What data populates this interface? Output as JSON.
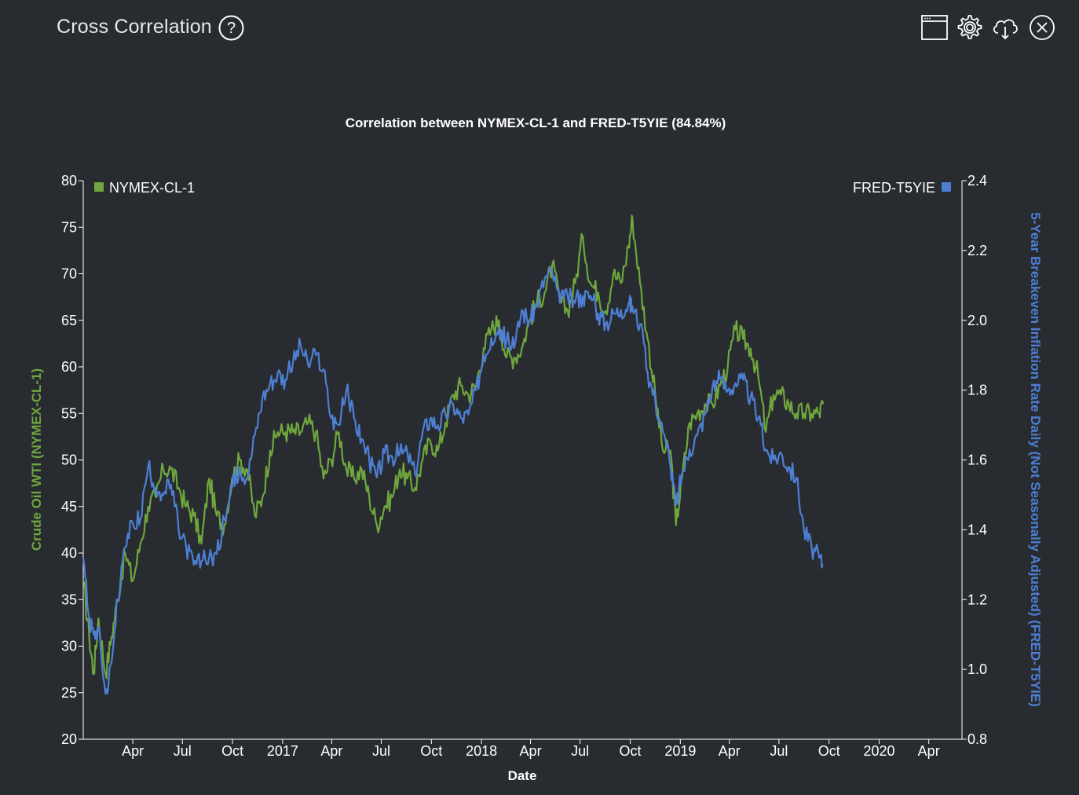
{
  "header": {
    "title": "Cross Correlation",
    "help_icon": "help-circle-icon",
    "toolbar": [
      {
        "name": "window-icon"
      },
      {
        "name": "gear-icon"
      },
      {
        "name": "cloud-download-icon"
      },
      {
        "name": "close-circle-icon"
      }
    ]
  },
  "colors": {
    "background": "#282c31",
    "series_green": "#6fa63d",
    "series_blue": "#4e7fd4",
    "axis": "#ffffff"
  },
  "chart_data": {
    "type": "line",
    "title": "Correlation between NYMEX-CL-1 and FRED-T5YIE (84.84%)",
    "xlabel": "Date",
    "ylabel_left": "Crude Oil WTI (NYMEX-CL-1)",
    "ylabel_right": "5-Year Breakeven Inflation Rate Daily (Not Seasonally Adjusted) (FRED-T5YIE)",
    "x_range": [
      "2016-01-01",
      "2020-06-01"
    ],
    "x_ticks": [
      {
        "date": "2016-04-01",
        "label": "Apr"
      },
      {
        "date": "2016-07-01",
        "label": "Jul"
      },
      {
        "date": "2016-10-01",
        "label": "Oct"
      },
      {
        "date": "2017-01-01",
        "label": "2017"
      },
      {
        "date": "2017-04-01",
        "label": "Apr"
      },
      {
        "date": "2017-07-01",
        "label": "Jul"
      },
      {
        "date": "2017-10-01",
        "label": "Oct"
      },
      {
        "date": "2018-01-01",
        "label": "2018"
      },
      {
        "date": "2018-04-01",
        "label": "Apr"
      },
      {
        "date": "2018-07-01",
        "label": "Jul"
      },
      {
        "date": "2018-10-01",
        "label": "Oct"
      },
      {
        "date": "2019-01-01",
        "label": "2019"
      },
      {
        "date": "2019-04-01",
        "label": "Apr"
      },
      {
        "date": "2019-07-01",
        "label": "Jul"
      },
      {
        "date": "2019-10-01",
        "label": "Oct"
      },
      {
        "date": "2020-01-01",
        "label": "2020"
      },
      {
        "date": "2020-04-01",
        "label": "Apr"
      }
    ],
    "y_left": {
      "min": 20,
      "max": 80,
      "ticks": [
        20,
        25,
        30,
        35,
        40,
        45,
        50,
        55,
        60,
        65,
        70,
        75,
        80
      ]
    },
    "y_right": {
      "min": 0.8,
      "max": 2.4,
      "ticks": [
        "0.8",
        "1.0",
        "1.2",
        "1.4",
        "1.6",
        "1.8",
        "2.0",
        "2.2",
        "2.4"
      ]
    },
    "legend": {
      "left": "top-left",
      "right": "top-right"
    },
    "series": [
      {
        "name": "NYMEX-CL-1",
        "axis": "left",
        "color": "#6fa63d",
        "points": [
          [
            "2016-01-01",
            37
          ],
          [
            "2016-01-12",
            31
          ],
          [
            "2016-01-20",
            27
          ],
          [
            "2016-01-29",
            33
          ],
          [
            "2016-02-11",
            27
          ],
          [
            "2016-02-22",
            31
          ],
          [
            "2016-03-04",
            35
          ],
          [
            "2016-03-18",
            40
          ],
          [
            "2016-04-01",
            37
          ],
          [
            "2016-04-15",
            41
          ],
          [
            "2016-04-29",
            45
          ],
          [
            "2016-05-13",
            46
          ],
          [
            "2016-05-27",
            49
          ],
          [
            "2016-06-10",
            49
          ],
          [
            "2016-06-24",
            47
          ],
          [
            "2016-07-08",
            45
          ],
          [
            "2016-07-22",
            44
          ],
          [
            "2016-08-05",
            41
          ],
          [
            "2016-08-19",
            48
          ],
          [
            "2016-09-02",
            44
          ],
          [
            "2016-09-16",
            43
          ],
          [
            "2016-09-30",
            48
          ],
          [
            "2016-10-14",
            50
          ],
          [
            "2016-10-28",
            49
          ],
          [
            "2016-11-11",
            44
          ],
          [
            "2016-11-25",
            46
          ],
          [
            "2016-12-09",
            51
          ],
          [
            "2016-12-23",
            53
          ],
          [
            "2017-01-06",
            53
          ],
          [
            "2017-01-20",
            53
          ],
          [
            "2017-02-03",
            53
          ],
          [
            "2017-02-17",
            54
          ],
          [
            "2017-03-03",
            53
          ],
          [
            "2017-03-17",
            48
          ],
          [
            "2017-03-31",
            50
          ],
          [
            "2017-04-14",
            53
          ],
          [
            "2017-04-28",
            49
          ],
          [
            "2017-05-12",
            48
          ],
          [
            "2017-05-26",
            49
          ],
          [
            "2017-06-09",
            46
          ],
          [
            "2017-06-23",
            43
          ],
          [
            "2017-07-07",
            45
          ],
          [
            "2017-07-21",
            46
          ],
          [
            "2017-08-04",
            49
          ],
          [
            "2017-08-18",
            48
          ],
          [
            "2017-09-01",
            47
          ],
          [
            "2017-09-15",
            50
          ],
          [
            "2017-09-29",
            52
          ],
          [
            "2017-10-13",
            51
          ],
          [
            "2017-10-27",
            54
          ],
          [
            "2017-11-10",
            57
          ],
          [
            "2017-11-24",
            58
          ],
          [
            "2017-12-08",
            57
          ],
          [
            "2017-12-22",
            58
          ],
          [
            "2018-01-05",
            62
          ],
          [
            "2018-01-19",
            64
          ],
          [
            "2018-02-02",
            65
          ],
          [
            "2018-02-16",
            61
          ],
          [
            "2018-03-02",
            61
          ],
          [
            "2018-03-16",
            62
          ],
          [
            "2018-03-30",
            65
          ],
          [
            "2018-04-13",
            67
          ],
          [
            "2018-04-27",
            68
          ],
          [
            "2018-05-11",
            71
          ],
          [
            "2018-05-25",
            67
          ],
          [
            "2018-06-08",
            66
          ],
          [
            "2018-06-22",
            69
          ],
          [
            "2018-07-06",
            74
          ],
          [
            "2018-07-20",
            69
          ],
          [
            "2018-08-03",
            68
          ],
          [
            "2018-08-17",
            66
          ],
          [
            "2018-08-31",
            70
          ],
          [
            "2018-09-14",
            69
          ],
          [
            "2018-09-28",
            73
          ],
          [
            "2018-10-05",
            76
          ],
          [
            "2018-10-19",
            69
          ],
          [
            "2018-11-02",
            63
          ],
          [
            "2018-11-16",
            57
          ],
          [
            "2018-11-30",
            51
          ],
          [
            "2018-12-14",
            51
          ],
          [
            "2018-12-24",
            43
          ],
          [
            "2019-01-04",
            48
          ],
          [
            "2019-01-18",
            54
          ],
          [
            "2019-02-01",
            55
          ],
          [
            "2019-02-15",
            56
          ],
          [
            "2019-03-01",
            56
          ],
          [
            "2019-03-15",
            58
          ],
          [
            "2019-03-29",
            60
          ],
          [
            "2019-04-12",
            64
          ],
          [
            "2019-04-26",
            63
          ],
          [
            "2019-05-10",
            62
          ],
          [
            "2019-05-24",
            59
          ],
          [
            "2019-06-07",
            53
          ],
          [
            "2019-06-21",
            57
          ],
          [
            "2019-07-05",
            57
          ],
          [
            "2019-07-19",
            56
          ],
          [
            "2019-08-02",
            55
          ],
          [
            "2019-08-16",
            55
          ],
          [
            "2019-08-30",
            55
          ],
          [
            "2019-09-13",
            55
          ],
          [
            "2019-09-20",
            56
          ]
        ]
      },
      {
        "name": "FRED-T5YIE",
        "axis": "right",
        "color": "#4e7fd4",
        "points": [
          [
            "2016-01-01",
            1.32
          ],
          [
            "2016-01-12",
            1.15
          ],
          [
            "2016-01-20",
            1.1
          ],
          [
            "2016-01-29",
            1.12
          ],
          [
            "2016-02-11",
            0.93
          ],
          [
            "2016-02-22",
            1.02
          ],
          [
            "2016-03-04",
            1.2
          ],
          [
            "2016-03-18",
            1.35
          ],
          [
            "2016-04-01",
            1.42
          ],
          [
            "2016-04-15",
            1.43
          ],
          [
            "2016-04-29",
            1.58
          ],
          [
            "2016-05-13",
            1.52
          ],
          [
            "2016-05-27",
            1.5
          ],
          [
            "2016-06-10",
            1.53
          ],
          [
            "2016-06-24",
            1.4
          ],
          [
            "2016-07-08",
            1.35
          ],
          [
            "2016-07-22",
            1.3
          ],
          [
            "2016-08-05",
            1.31
          ],
          [
            "2016-08-19",
            1.32
          ],
          [
            "2016-09-02",
            1.33
          ],
          [
            "2016-09-16",
            1.43
          ],
          [
            "2016-09-30",
            1.52
          ],
          [
            "2016-10-14",
            1.58
          ],
          [
            "2016-10-28",
            1.55
          ],
          [
            "2016-11-11",
            1.67
          ],
          [
            "2016-11-25",
            1.78
          ],
          [
            "2016-12-09",
            1.82
          ],
          [
            "2016-12-23",
            1.85
          ],
          [
            "2017-01-06",
            1.83
          ],
          [
            "2017-01-20",
            1.88
          ],
          [
            "2017-02-03",
            1.93
          ],
          [
            "2017-02-17",
            1.87
          ],
          [
            "2017-03-03",
            1.9
          ],
          [
            "2017-03-17",
            1.86
          ],
          [
            "2017-03-31",
            1.72
          ],
          [
            "2017-04-14",
            1.7
          ],
          [
            "2017-04-28",
            1.8
          ],
          [
            "2017-05-12",
            1.72
          ],
          [
            "2017-05-26",
            1.66
          ],
          [
            "2017-06-09",
            1.6
          ],
          [
            "2017-06-23",
            1.55
          ],
          [
            "2017-07-07",
            1.62
          ],
          [
            "2017-07-21",
            1.61
          ],
          [
            "2017-08-04",
            1.62
          ],
          [
            "2017-08-18",
            1.62
          ],
          [
            "2017-09-01",
            1.56
          ],
          [
            "2017-09-15",
            1.68
          ],
          [
            "2017-09-29",
            1.72
          ],
          [
            "2017-10-13",
            1.7
          ],
          [
            "2017-10-27",
            1.73
          ],
          [
            "2017-11-10",
            1.76
          ],
          [
            "2017-11-24",
            1.72
          ],
          [
            "2017-12-08",
            1.73
          ],
          [
            "2017-12-22",
            1.8
          ],
          [
            "2018-01-05",
            1.9
          ],
          [
            "2018-01-19",
            1.95
          ],
          [
            "2018-02-02",
            1.98
          ],
          [
            "2018-02-16",
            1.94
          ],
          [
            "2018-03-02",
            1.92
          ],
          [
            "2018-03-16",
            2.03
          ],
          [
            "2018-03-30",
            2.0
          ],
          [
            "2018-04-13",
            2.05
          ],
          [
            "2018-04-27",
            2.12
          ],
          [
            "2018-05-11",
            2.14
          ],
          [
            "2018-05-25",
            2.05
          ],
          [
            "2018-06-08",
            2.07
          ],
          [
            "2018-06-22",
            2.05
          ],
          [
            "2018-07-06",
            2.07
          ],
          [
            "2018-07-20",
            2.07
          ],
          [
            "2018-08-03",
            2.02
          ],
          [
            "2018-08-17",
            1.99
          ],
          [
            "2018-08-31",
            2.02
          ],
          [
            "2018-09-14",
            2.03
          ],
          [
            "2018-09-28",
            2.05
          ],
          [
            "2018-10-05",
            2.04
          ],
          [
            "2018-10-19",
            1.99
          ],
          [
            "2018-11-02",
            1.85
          ],
          [
            "2018-11-16",
            1.77
          ],
          [
            "2018-11-30",
            1.68
          ],
          [
            "2018-12-14",
            1.58
          ],
          [
            "2018-12-24",
            1.47
          ],
          [
            "2019-01-04",
            1.56
          ],
          [
            "2019-01-18",
            1.63
          ],
          [
            "2019-02-01",
            1.67
          ],
          [
            "2019-02-15",
            1.73
          ],
          [
            "2019-03-01",
            1.81
          ],
          [
            "2019-03-15",
            1.83
          ],
          [
            "2019-03-29",
            1.8
          ],
          [
            "2019-04-12",
            1.82
          ],
          [
            "2019-04-26",
            1.83
          ],
          [
            "2019-05-10",
            1.78
          ],
          [
            "2019-05-24",
            1.72
          ],
          [
            "2019-06-07",
            1.63
          ],
          [
            "2019-06-21",
            1.6
          ],
          [
            "2019-07-05",
            1.62
          ],
          [
            "2019-07-19",
            1.58
          ],
          [
            "2019-08-02",
            1.55
          ],
          [
            "2019-08-16",
            1.4
          ],
          [
            "2019-08-30",
            1.35
          ],
          [
            "2019-09-13",
            1.32
          ],
          [
            "2019-09-20",
            1.3
          ]
        ]
      }
    ]
  }
}
